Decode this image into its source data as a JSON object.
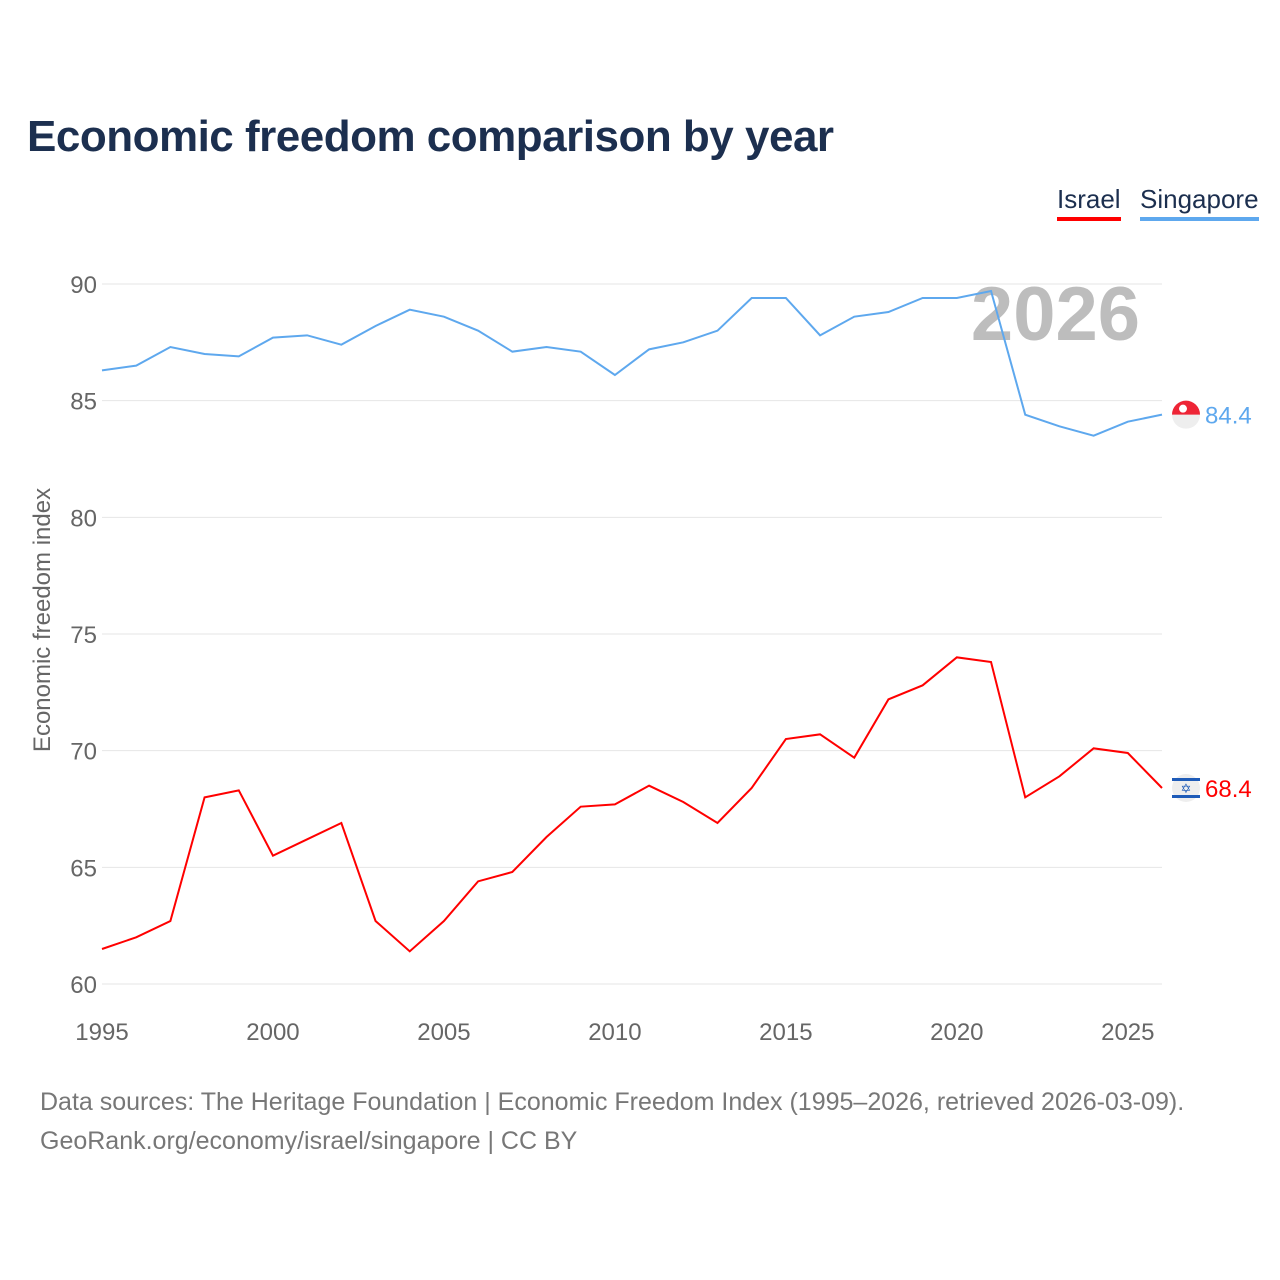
{
  "title": "Economic freedom comparison by year",
  "legend": {
    "israel": "Israel",
    "singapore": "Singapore"
  },
  "watermark_year": "2026",
  "footer": {
    "line1": "Data sources: The Heritage Foundation | Economic Freedom Index (1995–2026, retrieved 2026-03-09).",
    "line2": "GeoRank.org/economy/israel/singapore | CC BY"
  },
  "chart_data": {
    "type": "line",
    "title": "Economic freedom comparison by year",
    "xlabel": "",
    "ylabel": "Economic freedom index",
    "xlim": [
      1995,
      2026
    ],
    "ylim": [
      60,
      90
    ],
    "xticks": [
      1995,
      2000,
      2005,
      2010,
      2015,
      2020,
      2025
    ],
    "yticks": [
      60,
      65,
      70,
      75,
      80,
      85,
      90
    ],
    "grid": true,
    "legend_position": "top-right",
    "x": [
      1995,
      1996,
      1997,
      1998,
      1999,
      2000,
      2001,
      2002,
      2003,
      2004,
      2005,
      2006,
      2007,
      2008,
      2009,
      2010,
      2011,
      2012,
      2013,
      2014,
      2015,
      2016,
      2017,
      2018,
      2019,
      2020,
      2021,
      2022,
      2023,
      2024,
      2025,
      2026
    ],
    "series": [
      {
        "name": "Singapore",
        "color": "#5ea8ee",
        "end_label": "84.4",
        "flag": "singapore-flag",
        "values": [
          86.3,
          86.5,
          87.3,
          87.0,
          86.9,
          87.7,
          87.8,
          87.4,
          88.2,
          88.9,
          88.6,
          88.0,
          87.1,
          87.3,
          87.1,
          86.1,
          87.2,
          87.5,
          88.0,
          89.4,
          89.4,
          87.8,
          88.6,
          88.8,
          89.4,
          89.4,
          89.7,
          84.4,
          83.9,
          83.5,
          84.1,
          84.4
        ]
      },
      {
        "name": "Israel",
        "color": "#ff0000",
        "end_label": "68.4",
        "flag": "israel-flag",
        "values": [
          61.5,
          62.0,
          62.7,
          68.0,
          68.3,
          65.5,
          66.2,
          66.9,
          62.7,
          61.4,
          62.7,
          64.4,
          64.8,
          66.3,
          67.6,
          67.7,
          68.5,
          67.8,
          66.9,
          68.4,
          70.5,
          70.7,
          69.7,
          72.2,
          72.8,
          74.0,
          73.8,
          68.0,
          68.9,
          70.1,
          69.9,
          68.4
        ]
      }
    ]
  }
}
